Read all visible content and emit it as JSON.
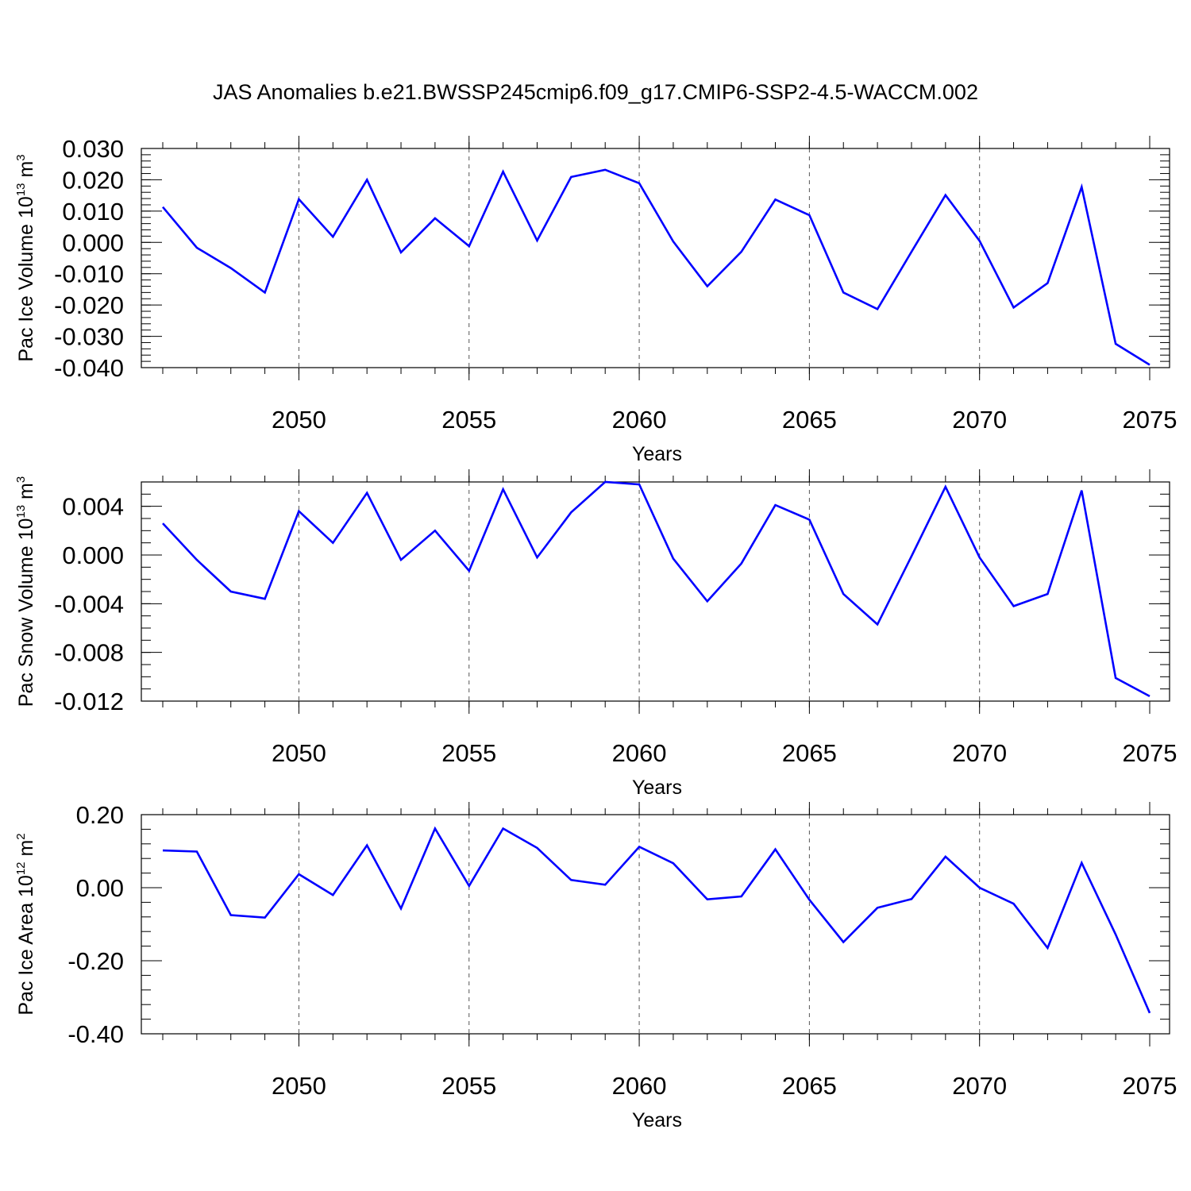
{
  "title": "JAS Anomalies b.e21.BWSSP245cmip6.f09_g17.CMIP6-SSP2-4.5-WACCM.002",
  "colors": {
    "line": "#0000ff",
    "axis": "#000000",
    "grid": "#555555"
  },
  "chart_data": [
    {
      "type": "line",
      "ylabel": "Pac Ice Volume 10",
      "ylabel_exp": "13",
      "ylabel_unit": " m",
      "ylabel_unit_exp": "3",
      "xlabel": "Years",
      "xlim": [
        2046,
        2075
      ],
      "ylim": [
        -0.04,
        0.03
      ],
      "x_ticks": [
        2050,
        2055,
        2060,
        2065,
        2070,
        2075
      ],
      "x_tick_labels": [
        "2050",
        "2055",
        "2060",
        "2065",
        "2070",
        "2075"
      ],
      "y_ticks": [
        0.03,
        0.02,
        0.01,
        0.0,
        -0.01,
        -0.02,
        -0.03,
        -0.04
      ],
      "y_tick_labels": [
        "0.030",
        "0.020",
        "0.010",
        "0.000",
        "-0.010",
        "-0.020",
        "-0.030",
        "-0.040"
      ],
      "y_minor_step": 0.002,
      "grid": "x dashed",
      "x": [
        2046,
        2047,
        2048,
        2049,
        2050,
        2051,
        2052,
        2053,
        2054,
        2055,
        2056,
        2057,
        2058,
        2059,
        2060,
        2061,
        2062,
        2063,
        2064,
        2065,
        2066,
        2067,
        2068,
        2069,
        2070,
        2071,
        2072,
        2073,
        2074,
        2075
      ],
      "values": [
        0.0113,
        -0.0017,
        -0.0082,
        -0.016,
        0.0138,
        0.0018,
        0.02,
        -0.0032,
        0.0077,
        -0.0012,
        0.0226,
        0.0006,
        0.0209,
        0.0232,
        0.0189,
        0.0003,
        -0.014,
        -0.003,
        0.0137,
        0.0087,
        -0.016,
        -0.0213,
        -0.003,
        0.0151,
        0.0005,
        -0.0208,
        -0.013,
        0.0177,
        -0.0324,
        -0.0391
      ]
    },
    {
      "type": "line",
      "ylabel": "Pac Snow Volume 10",
      "ylabel_exp": "13",
      "ylabel_unit": " m",
      "ylabel_unit_exp": "3",
      "xlabel": "Years",
      "xlim": [
        2046,
        2075
      ],
      "ylim": [
        -0.012,
        0.006
      ],
      "x_ticks": [
        2050,
        2055,
        2060,
        2065,
        2070,
        2075
      ],
      "x_tick_labels": [
        "2050",
        "2055",
        "2060",
        "2065",
        "2070",
        "2075"
      ],
      "y_ticks": [
        0.004,
        0.0,
        -0.004,
        -0.008,
        -0.012
      ],
      "y_tick_labels": [
        "0.004",
        "0.000",
        "-0.004",
        "-0.008",
        "-0.012"
      ],
      "y_minor_step": 0.001,
      "grid": "x dashed",
      "x": [
        2046,
        2047,
        2048,
        2049,
        2050,
        2051,
        2052,
        2053,
        2054,
        2055,
        2056,
        2057,
        2058,
        2059,
        2060,
        2061,
        2062,
        2063,
        2064,
        2065,
        2066,
        2067,
        2068,
        2069,
        2070,
        2071,
        2072,
        2073,
        2074,
        2075
      ],
      "values": [
        0.0026,
        -0.0004,
        -0.003,
        -0.0036,
        0.0036,
        0.001,
        0.0051,
        -0.0004,
        0.002,
        -0.0013,
        0.0054,
        -0.0002,
        0.0035,
        0.006,
        0.0058,
        -0.0003,
        -0.0038,
        -0.0007,
        0.0041,
        0.0029,
        -0.0032,
        -0.0057,
        -0.0001,
        0.0056,
        -0.0002,
        -0.0042,
        -0.0032,
        0.0053,
        -0.0101,
        -0.0116
      ]
    },
    {
      "type": "line",
      "ylabel": "Pac Ice Area 10",
      "ylabel_exp": "12",
      "ylabel_unit": " m",
      "ylabel_unit_exp": "2",
      "xlabel": "Years",
      "xlim": [
        2046,
        2075
      ],
      "ylim": [
        -0.4,
        0.2
      ],
      "x_ticks": [
        2050,
        2055,
        2060,
        2065,
        2070,
        2075
      ],
      "x_tick_labels": [
        "2050",
        "2055",
        "2060",
        "2065",
        "2070",
        "2075"
      ],
      "y_ticks": [
        0.2,
        0.0,
        -0.2,
        -0.4
      ],
      "y_tick_labels": [
        "0.20",
        "0.00",
        "-0.20",
        "-0.40"
      ],
      "y_minor_step": 0.04,
      "grid": "x dashed",
      "x": [
        2046,
        2047,
        2048,
        2049,
        2050,
        2051,
        2052,
        2053,
        2054,
        2055,
        2056,
        2057,
        2058,
        2059,
        2060,
        2061,
        2062,
        2063,
        2064,
        2065,
        2066,
        2067,
        2068,
        2069,
        2070,
        2071,
        2072,
        2073,
        2074,
        2075
      ],
      "values": [
        0.102,
        0.099,
        -0.075,
        -0.082,
        0.037,
        -0.02,
        0.116,
        -0.057,
        0.162,
        0.005,
        0.162,
        0.109,
        0.021,
        0.008,
        0.112,
        0.067,
        -0.032,
        -0.024,
        0.105,
        -0.033,
        -0.149,
        -0.055,
        -0.031,
        0.085,
        0.0,
        -0.044,
        -0.165,
        0.068,
        -0.128,
        -0.343
      ]
    }
  ]
}
